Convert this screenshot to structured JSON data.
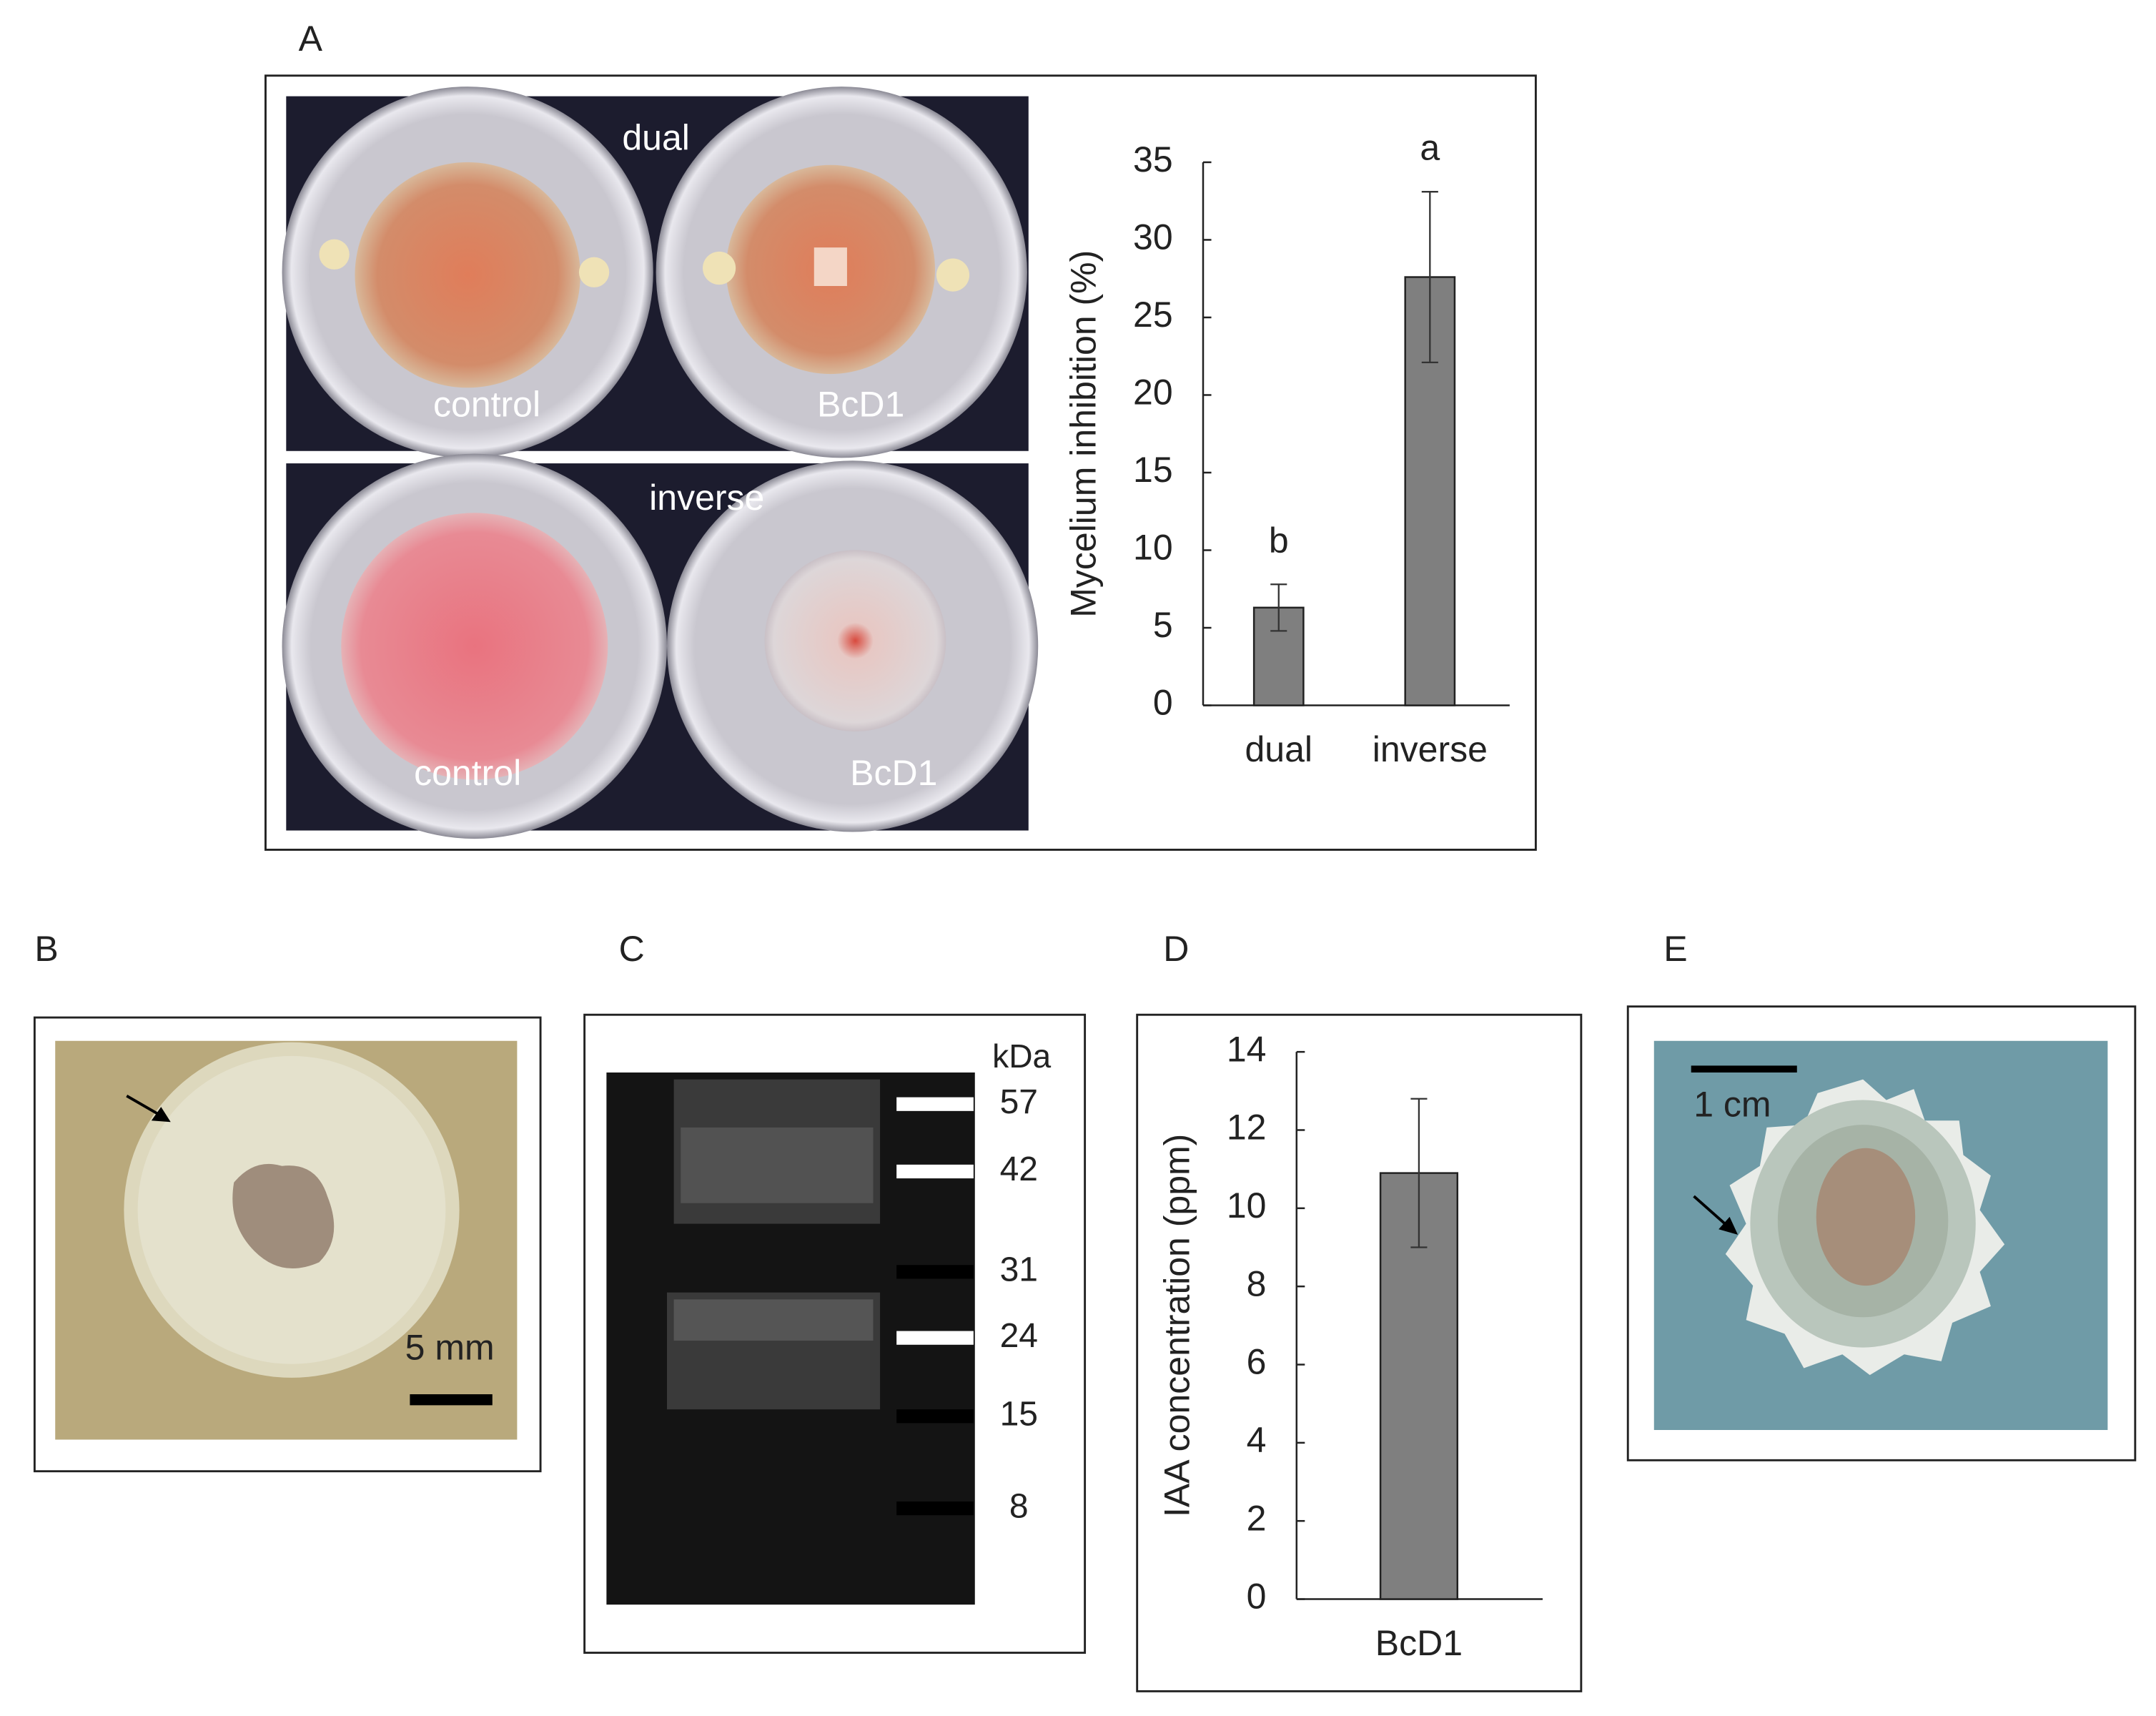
{
  "panel_labels": [
    "A",
    "B",
    "C",
    "D",
    "E"
  ],
  "plate_labels": [
    "dual",
    "control",
    "BcD1",
    "inverse",
    "control",
    "BcD1"
  ],
  "scale_bars": [
    "5 mm",
    "1 cm"
  ],
  "gel": {
    "unit": "kDa",
    "markers": [
      57,
      42,
      31,
      24,
      15,
      8
    ]
  },
  "chart_data": [
    {
      "type": "bar",
      "y_label": "Mycelium inhibition (%)",
      "categories": [
        "dual",
        "inverse"
      ],
      "values": [
        6.3,
        27.6
      ],
      "errors": [
        1.5,
        5.5
      ],
      "annotations": [
        "b",
        "a"
      ],
      "color": "#7f7f7f",
      "ylim": [
        0,
        35
      ],
      "yticks": [
        0,
        5,
        10,
        15,
        20,
        25,
        30,
        35
      ]
    },
    {
      "type": "bar",
      "y_label": "IAA concentration (ppm)",
      "categories": [
        "BcD1"
      ],
      "values": [
        10.9
      ],
      "errors": [
        1.9
      ],
      "color": "#7f7f7f",
      "ylim": [
        0,
        14
      ],
      "yticks": [
        0,
        2,
        4,
        6,
        8,
        10,
        12,
        14
      ]
    }
  ]
}
